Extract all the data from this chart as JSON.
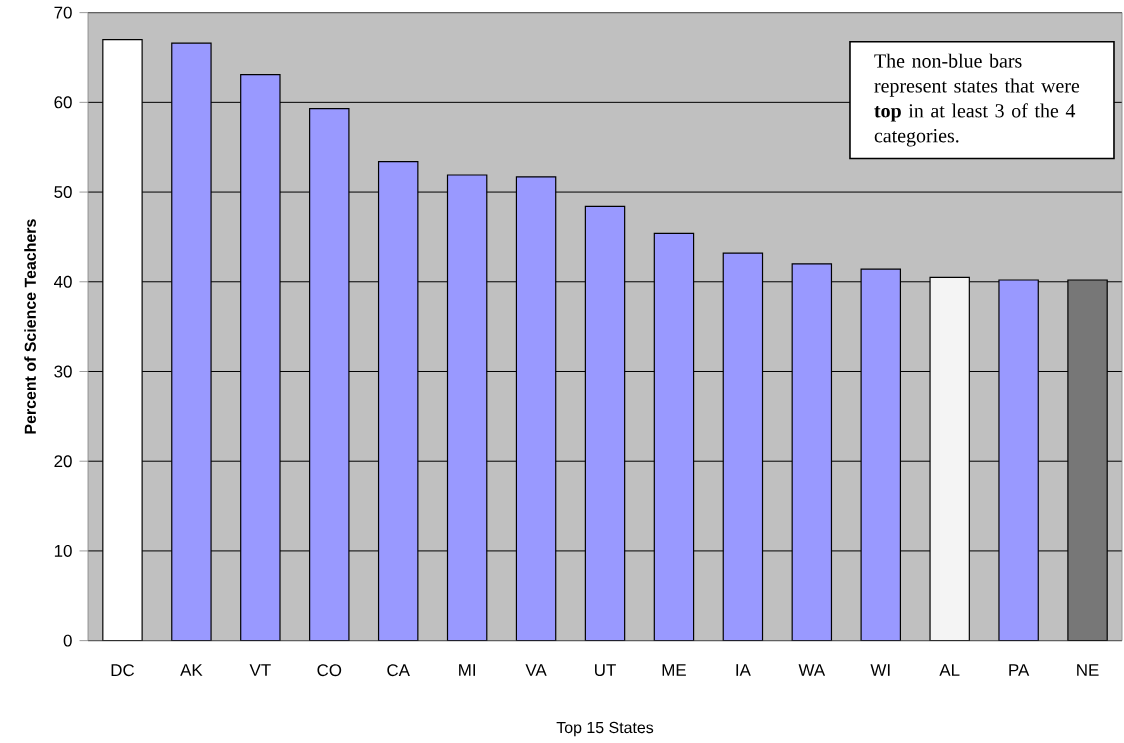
{
  "chart_data": {
    "type": "bar",
    "xlabel": "Top 15 States",
    "ylabel": "Percent of Science Teachers",
    "categories": [
      "DC",
      "AK",
      "VT",
      "CO",
      "CA",
      "MI",
      "VA",
      "UT",
      "ME",
      "IA",
      "WA",
      "WI",
      "AL",
      "PA",
      "NE"
    ],
    "values": [
      67.0,
      66.6,
      63.1,
      59.3,
      53.4,
      51.9,
      51.7,
      48.4,
      45.4,
      43.2,
      42.0,
      41.4,
      40.5,
      40.2,
      40.2
    ],
    "colors": [
      "#ffffff",
      "#9999ff",
      "#9999ff",
      "#9999ff",
      "#9999ff",
      "#9999ff",
      "#9999ff",
      "#9999ff",
      "#9999ff",
      "#9999ff",
      "#9999ff",
      "#9999ff",
      "#f4f4f4",
      "#9999ff",
      "#777777"
    ],
    "ylim": [
      0,
      70
    ],
    "yticks": [
      0,
      10,
      20,
      30,
      40,
      50,
      60,
      70
    ],
    "grid": "y",
    "annotations": [
      "The non-blue bars represent states that were **top** in at least 3 of the 4 categories."
    ]
  }
}
